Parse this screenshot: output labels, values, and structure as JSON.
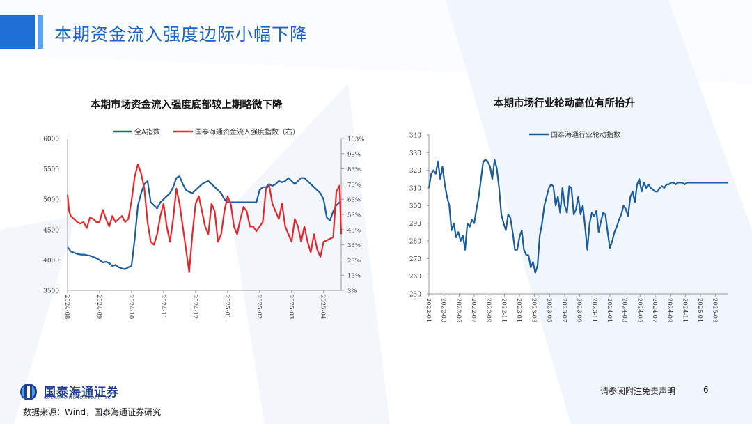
{
  "page": {
    "title": "本期资金流入强度边际小幅下降",
    "source": "数据来源：Wind，国泰海通证券研究",
    "disclaimer": "请参阅附注免责声明",
    "page_number": "6",
    "logo_cn": "国泰海通证券",
    "logo_en": "GUOTAI HAITONG SECURITIES"
  },
  "colors": {
    "accent": "#1f6fd6",
    "accent_light": "#5ea3f2",
    "series_blue": "#1b5c9e",
    "series_red": "#e8262a",
    "chart2_blue": "#1b5c9e"
  },
  "chart_data": [
    {
      "type": "line",
      "title": "本期市场资金流入强度底部较上期略微下降",
      "x_ticks": [
        "2024-08",
        "2024-09",
        "2024-10",
        "2024-11",
        "2024-12",
        "2025-01",
        "2025-02",
        "2025-03",
        "2025-04"
      ],
      "y_left": {
        "ylim": [
          3500,
          6000
        ],
        "ticks": [
          "6000",
          "5500",
          "5000",
          "4500",
          "4000",
          "3500"
        ]
      },
      "y_right": {
        "ylim": [
          3,
          103
        ],
        "ticks": [
          "103%",
          "93%",
          "83%",
          "73%",
          "63%",
          "53%",
          "43%",
          "33%",
          "23%",
          "13%",
          "3%"
        ]
      },
      "legend_position": "top",
      "x_range": [
        0,
        8.55
      ],
      "series": [
        {
          "name": "全A指数",
          "axis": "left",
          "x": [
            0,
            0.05,
            0.1,
            0.2,
            0.3,
            0.4,
            0.5,
            0.6,
            0.7,
            0.8,
            0.9,
            1.0,
            1.1,
            1.2,
            1.3,
            1.4,
            1.5,
            1.6,
            1.7,
            1.8,
            1.9,
            2.0,
            2.1,
            2.2,
            2.3,
            2.4,
            2.5,
            2.6,
            2.7,
            2.8,
            2.9,
            3.0,
            3.1,
            3.2,
            3.3,
            3.4,
            3.5,
            3.6,
            3.7,
            3.8,
            3.9,
            4.0,
            4.1,
            4.2,
            4.3,
            4.4,
            4.5,
            4.6,
            4.7,
            4.8,
            4.9,
            5.0,
            5.1,
            5.2,
            5.3,
            5.4,
            5.5,
            5.6,
            5.7,
            5.8,
            5.9,
            6.0,
            6.1,
            6.2,
            6.3,
            6.4,
            6.5,
            6.6,
            6.7,
            6.8,
            6.9,
            7.0,
            7.1,
            7.2,
            7.3,
            7.4,
            7.5,
            7.6,
            7.7,
            7.8,
            7.9,
            8.0,
            8.1,
            8.2,
            8.3,
            8.4,
            8.5,
            8.55
          ],
          "values": [
            4210,
            4180,
            4140,
            4120,
            4100,
            4090,
            4090,
            4080,
            4070,
            4050,
            4030,
            4000,
            3960,
            3970,
            3950,
            3900,
            3920,
            3880,
            3860,
            3850,
            3880,
            3900,
            4350,
            4900,
            5100,
            5250,
            5300,
            4950,
            4900,
            4850,
            4950,
            5000,
            5050,
            5100,
            5200,
            5350,
            5380,
            5250,
            5150,
            5120,
            5100,
            5150,
            5200,
            5250,
            5280,
            5300,
            5250,
            5200,
            5150,
            5100,
            5000,
            4950,
            4950,
            4950,
            4950,
            4950,
            4950,
            4950,
            4950,
            4950,
            4950,
            5150,
            5200,
            5200,
            5250,
            5220,
            5250,
            5300,
            5280,
            5300,
            5350,
            5300,
            5250,
            5300,
            5350,
            5350,
            5300,
            5250,
            5200,
            5150,
            5100,
            5000,
            4700,
            4650,
            4800,
            4900,
            4950,
            4950
          ]
        },
        {
          "name": "国泰海通资金流入强度指数（右）",
          "axis": "right",
          "x": [
            0,
            0.05,
            0.1,
            0.2,
            0.3,
            0.4,
            0.5,
            0.6,
            0.7,
            0.8,
            0.9,
            1.0,
            1.1,
            1.2,
            1.3,
            1.4,
            1.5,
            1.6,
            1.7,
            1.8,
            1.9,
            2.0,
            2.1,
            2.2,
            2.3,
            2.4,
            2.5,
            2.6,
            2.7,
            2.8,
            2.9,
            3.0,
            3.1,
            3.2,
            3.3,
            3.4,
            3.5,
            3.6,
            3.7,
            3.8,
            3.9,
            4.0,
            4.1,
            4.2,
            4.3,
            4.4,
            4.5,
            4.6,
            4.7,
            4.8,
            4.9,
            5.0,
            5.1,
            5.2,
            5.3,
            5.4,
            5.5,
            5.6,
            5.7,
            5.8,
            5.9,
            6.0,
            6.1,
            6.2,
            6.3,
            6.4,
            6.5,
            6.6,
            6.7,
            6.8,
            6.9,
            7.0,
            7.1,
            7.2,
            7.3,
            7.4,
            7.5,
            7.6,
            7.7,
            7.8,
            7.9,
            8.0,
            8.1,
            8.2,
            8.3,
            8.4,
            8.5,
            8.55
          ],
          "values": [
            66,
            55,
            52,
            50,
            48,
            47,
            48,
            44,
            51,
            50,
            48,
            48,
            56,
            50,
            45,
            52,
            48,
            50,
            52,
            48,
            50,
            62,
            78,
            86,
            80,
            70,
            48,
            35,
            33,
            40,
            52,
            60,
            45,
            35,
            50,
            70,
            60,
            45,
            30,
            15,
            40,
            60,
            65,
            55,
            45,
            40,
            60,
            55,
            35,
            40,
            55,
            65,
            60,
            45,
            40,
            50,
            58,
            55,
            45,
            45,
            42,
            45,
            48,
            70,
            72,
            60,
            55,
            50,
            60,
            45,
            40,
            35,
            50,
            45,
            35,
            45,
            35,
            28,
            40,
            30,
            25,
            35,
            36,
            37,
            38,
            68,
            72,
            40
          ]
        }
      ]
    },
    {
      "type": "line",
      "title": "本期市场行业轮动高位有所抬升",
      "x_ticks": [
        "2022-01",
        "2022-03",
        "2022-05",
        "2022-07",
        "2022-09",
        "2022-11",
        "2023-01",
        "2023-03",
        "2023-05",
        "2023-07",
        "2023-09",
        "2023-11",
        "2024-01",
        "2024-03",
        "2024-05",
        "2024-07",
        "2024-09",
        "2024-11",
        "2025-01",
        "2025-03"
      ],
      "ylim": [
        250,
        340
      ],
      "y_ticks": [
        "340",
        "330",
        "320",
        "310",
        "300",
        "290",
        "280",
        "270",
        "260",
        "250"
      ],
      "legend_position": "top",
      "x_range": [
        0,
        39.6
      ],
      "series": [
        {
          "name": "国泰海通行业轮动指数",
          "x": [
            0,
            0.3,
            0.6,
            0.9,
            1.2,
            1.5,
            1.8,
            2.1,
            2.4,
            2.7,
            3.0,
            3.3,
            3.6,
            3.9,
            4.2,
            4.5,
            4.8,
            5.1,
            5.4,
            5.7,
            6.0,
            6.3,
            6.6,
            6.9,
            7.2,
            7.5,
            7.8,
            8.1,
            8.4,
            8.7,
            9.0,
            9.3,
            9.6,
            9.9,
            10.2,
            10.5,
            10.8,
            11.1,
            11.4,
            11.7,
            12.0,
            12.3,
            12.6,
            12.9,
            13.2,
            13.5,
            13.8,
            14.1,
            14.4,
            14.7,
            15.0,
            15.3,
            15.6,
            15.9,
            16.2,
            16.5,
            16.8,
            17.1,
            17.4,
            17.7,
            18.0,
            18.3,
            18.6,
            18.9,
            19.2,
            19.5,
            19.8,
            20.1,
            20.4,
            20.7,
            21.0,
            21.3,
            21.6,
            21.9,
            22.2,
            22.5,
            22.8,
            23.1,
            23.4,
            23.7,
            24.0,
            24.3,
            24.6,
            24.9,
            25.2,
            25.5,
            25.8,
            26.1,
            26.4,
            26.7,
            27.0,
            27.3,
            27.6,
            27.9,
            28.2,
            28.5,
            28.8,
            29.1,
            29.4,
            29.7,
            30.0,
            30.3,
            30.6,
            30.9,
            31.2,
            31.5,
            31.8,
            32.1,
            32.4,
            32.7,
            33.0,
            33.3,
            33.6,
            33.9,
            34.2,
            34.5,
            34.8,
            35.1,
            35.4,
            35.7,
            36.0,
            36.3,
            36.6,
            36.9,
            37.2,
            37.5,
            37.8,
            38.1,
            38.4,
            38.7,
            39.0,
            39.3,
            39.6
          ],
          "values": [
            310,
            318,
            320,
            318,
            325,
            315,
            322,
            312,
            305,
            300,
            286,
            290,
            282,
            285,
            280,
            283,
            275,
            290,
            288,
            292,
            290,
            298,
            305,
            315,
            325,
            326,
            325,
            322,
            315,
            326,
            321,
            310,
            295,
            290,
            286,
            295,
            293,
            285,
            275,
            275,
            282,
            286,
            275,
            272,
            272,
            265,
            268,
            262,
            266,
            283,
            290,
            300,
            305,
            310,
            312,
            311,
            300,
            305,
            296,
            310,
            300,
            296,
            311,
            310,
            295,
            298,
            305,
            295,
            300,
            288,
            275,
            290,
            296,
            294,
            297,
            285,
            291,
            296,
            295,
            285,
            276,
            280,
            285,
            288,
            292,
            295,
            300,
            298,
            294,
            305,
            308,
            302,
            312,
            315,
            308,
            313,
            310,
            312,
            310,
            309,
            308,
            308,
            310,
            311,
            310,
            312,
            312,
            313,
            313,
            312,
            313,
            313,
            313,
            312,
            313,
            313,
            313,
            313,
            313,
            313,
            313,
            313,
            313,
            313,
            313,
            313,
            313,
            313,
            313,
            313,
            313,
            313,
            313
          ]
        }
      ]
    }
  ]
}
